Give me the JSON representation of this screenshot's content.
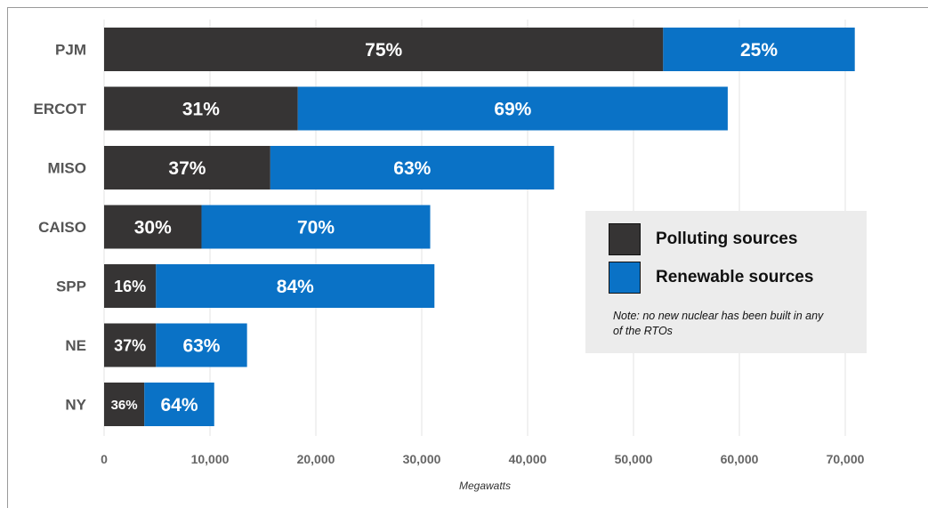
{
  "chart_data": {
    "type": "bar",
    "orientation": "horizontal",
    "stacked": true,
    "categories": [
      "PJM",
      "ERCOT",
      "MISO",
      "CAISO",
      "SPP",
      "NE",
      "NY"
    ],
    "series": [
      {
        "name": "Polluting sources",
        "color": "#363434",
        "values": [
          52800,
          18300,
          15700,
          9200,
          4900,
          4900,
          3800
        ],
        "labels": [
          "75%",
          "31%",
          "37%",
          "30%",
          "16%",
          "37%",
          "36%"
        ]
      },
      {
        "name": "Renewable sources",
        "color": "#0a72c6",
        "values": [
          18100,
          40600,
          26800,
          21600,
          26300,
          8600,
          6600
        ],
        "labels": [
          "25%",
          "69%",
          "63%",
          "70%",
          "84%",
          "63%",
          "64%"
        ]
      }
    ],
    "xlabel": "Megawatts",
    "xlim": [
      0,
      70000
    ],
    "xticks": [
      "0",
      "10,000",
      "20,000",
      "30,000",
      "40,000",
      "50,000",
      "60,000",
      "70,000"
    ],
    "grid": "vertical",
    "legend_position": "right",
    "legend_note": "Note: no new nuclear has been built in any of the RTOs"
  }
}
